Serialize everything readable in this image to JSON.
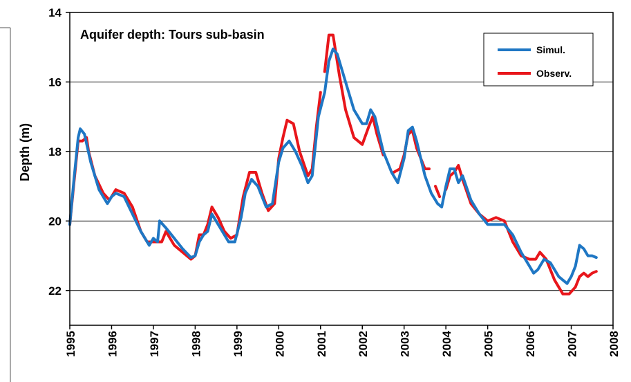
{
  "chart_data": {
    "type": "line",
    "title": "Aquifer depth: Tours sub-basin",
    "y_label": "Depth (m)",
    "xlim": [
      1995,
      2008
    ],
    "xticks": [
      1995,
      1996,
      1997,
      1998,
      1999,
      2000,
      2001,
      2002,
      2003,
      2004,
      2005,
      2006,
      2007,
      2008
    ],
    "ylim": [
      23,
      14
    ],
    "yticks": [
      14,
      16,
      18,
      20,
      22
    ],
    "grid": true,
    "legend": "upper right",
    "series": [
      {
        "name": "Simul.",
        "color": "#1f77c4",
        "x": [
          1995.0,
          1995.1,
          1995.2,
          1995.25,
          1995.35,
          1995.5,
          1995.7,
          1995.9,
          1996.0,
          1996.1,
          1996.3,
          1996.5,
          1996.7,
          1996.9,
          1997.0,
          1997.1,
          1997.15,
          1997.3,
          1997.5,
          1997.7,
          1997.9,
          1998.0,
          1998.1,
          1998.2,
          1998.3,
          1998.4,
          1998.6,
          1998.8,
          1998.95,
          1999.1,
          1999.2,
          1999.35,
          1999.5,
          1999.7,
          1999.85,
          2000.0,
          2000.1,
          2000.25,
          2000.4,
          2000.55,
          2000.7,
          2000.8,
          2000.95,
          2001.1,
          2001.2,
          2001.3,
          2001.4,
          2001.6,
          2001.8,
          2002.0,
          2002.1,
          2002.2,
          2002.3,
          2002.5,
          2002.7,
          2002.85,
          2003.0,
          2003.1,
          2003.2,
          2003.3,
          2003.5,
          2003.65,
          2003.8,
          2003.9,
          2004.0,
          2004.1,
          2004.2,
          2004.3,
          2004.4,
          2004.6,
          2004.8,
          2005.0,
          2005.2,
          2005.4,
          2005.6,
          2005.8,
          2006.0,
          2006.1,
          2006.2,
          2006.35,
          2006.5,
          2006.7,
          2006.9,
          2007.0,
          2007.1,
          2007.2,
          2007.3,
          2007.4,
          2007.5,
          2007.6
        ],
        "values": [
          20.1,
          18.8,
          17.6,
          17.35,
          17.5,
          18.3,
          19.1,
          19.5,
          19.3,
          19.2,
          19.3,
          19.8,
          20.3,
          20.7,
          20.5,
          20.6,
          20.0,
          20.2,
          20.5,
          20.8,
          21.05,
          21.0,
          20.6,
          20.4,
          20.3,
          19.8,
          20.2,
          20.6,
          20.6,
          19.9,
          19.2,
          18.8,
          19.0,
          19.6,
          19.5,
          18.3,
          17.9,
          17.7,
          18.0,
          18.4,
          18.9,
          18.7,
          17.0,
          16.3,
          15.4,
          15.05,
          15.2,
          16.0,
          16.8,
          17.2,
          17.2,
          16.8,
          17.0,
          18.0,
          18.6,
          18.9,
          18.2,
          17.4,
          17.3,
          17.7,
          18.7,
          19.2,
          19.5,
          19.6,
          19.0,
          18.5,
          18.5,
          18.9,
          18.7,
          19.4,
          19.8,
          20.1,
          20.1,
          20.1,
          20.4,
          20.9,
          21.3,
          21.5,
          21.4,
          21.1,
          21.2,
          21.6,
          21.8,
          21.6,
          21.3,
          20.7,
          20.8,
          21.0,
          21.0,
          21.05
        ]
      },
      {
        "name": "Observ.",
        "color": "#e8161b",
        "x": [
          1995.0,
          1995.1,
          1995.2,
          1995.3,
          1995.4,
          1995.45,
          1995.6,
          1995.8,
          1995.95,
          1996.1,
          1996.3,
          1996.5,
          1996.7,
          1996.85,
          1997.0,
          1997.2,
          1997.3,
          1997.4,
          1997.5,
          1997.7,
          1997.9,
          1998.0,
          1998.1,
          1998.2,
          1998.3,
          1998.4,
          1998.55,
          1998.7,
          1998.85,
          1999.0,
          1999.15,
          1999.3,
          1999.45,
          1999.6,
          1999.75,
          1999.9,
          2000.0,
          2000.1,
          2000.2,
          2000.35,
          2000.5,
          2000.7,
          2000.8,
          2000.9,
          2001.0,
          2001.05,
          2001.1,
          2001.2,
          2001.3,
          2001.45,
          2001.6,
          2001.8,
          2002.0,
          2002.15,
          2002.25,
          2002.35,
          2002.5,
          2002.6,
          2002.75,
          2002.9,
          2003.0,
          2003.1,
          2003.2,
          2003.3,
          2003.5,
          2003.6,
          2003.7,
          2003.75,
          2003.85,
          2003.9,
          2004.0,
          2004.1,
          2004.2,
          2004.3,
          2004.4,
          2004.6,
          2004.8,
          2005.0,
          2005.2,
          2005.4,
          2005.6,
          2005.8,
          2006.0,
          2006.15,
          2006.25,
          2006.4,
          2006.6,
          2006.8,
          2006.95,
          2007.1,
          2007.2,
          2007.3,
          2007.4,
          2007.5,
          2007.6
        ],
        "values": [
          20.1,
          18.9,
          17.7,
          17.7,
          17.6,
          18.0,
          18.7,
          19.2,
          19.4,
          19.1,
          19.2,
          19.6,
          20.3,
          20.6,
          20.6,
          20.6,
          20.3,
          20.5,
          20.7,
          20.9,
          21.1,
          21.0,
          20.4,
          20.4,
          20.1,
          19.6,
          19.9,
          20.3,
          20.5,
          20.4,
          19.3,
          18.6,
          18.6,
          19.2,
          19.7,
          19.5,
          18.2,
          17.6,
          17.1,
          17.2,
          18.0,
          18.7,
          18.5,
          17.3,
          16.3,
          null,
          15.7,
          14.65,
          14.65,
          15.8,
          16.8,
          17.6,
          17.8,
          17.3,
          17.0,
          17.5,
          18.1,
          null,
          18.6,
          18.5,
          18.1,
          17.5,
          17.4,
          17.9,
          18.5,
          18.5,
          null,
          19.0,
          19.3,
          null,
          19.1,
          18.7,
          18.6,
          18.4,
          18.8,
          19.5,
          19.8,
          20.0,
          19.9,
          20.0,
          20.6,
          21.0,
          21.1,
          21.1,
          20.9,
          21.1,
          21.7,
          22.1,
          22.1,
          21.9,
          21.6,
          21.5,
          21.6,
          21.5,
          21.45
        ]
      }
    ]
  }
}
